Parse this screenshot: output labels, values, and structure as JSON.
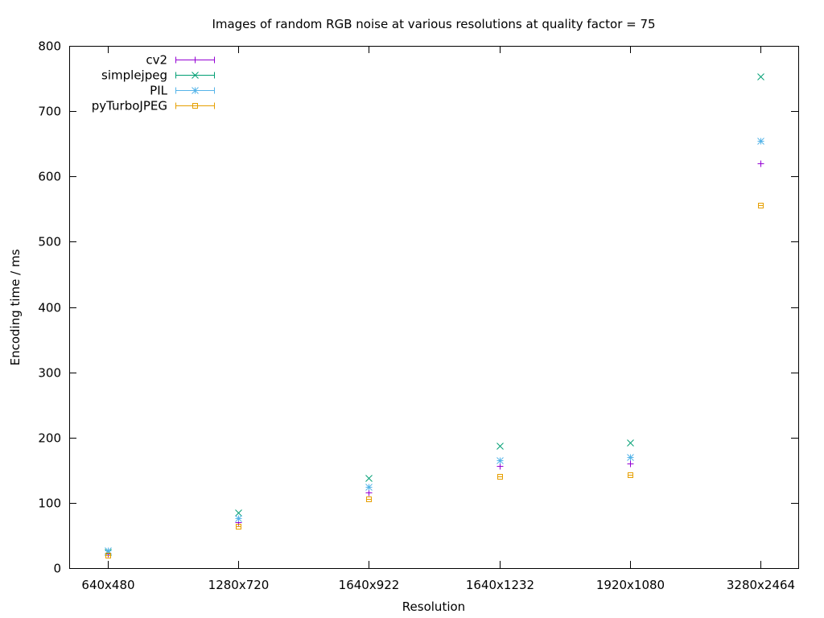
{
  "chart_data": {
    "type": "scatter",
    "title": "Images of random RGB noise at various resolutions at quality factor = 75",
    "xlabel": "Resolution",
    "ylabel": "Encoding time / ms",
    "categories": [
      "640x480",
      "1280x720",
      "1640x922",
      "1640x1232",
      "1920x1080",
      "3280x2464"
    ],
    "ylim": [
      0,
      800
    ],
    "yticks": [
      0,
      100,
      200,
      300,
      400,
      500,
      600,
      700,
      800
    ],
    "grid": false,
    "legend_position": "top-left",
    "series": [
      {
        "name": "cv2",
        "color": "#9400d3",
        "marker": "plus",
        "values": [
          22,
          70,
          116,
          156,
          160,
          620
        ]
      },
      {
        "name": "simplejpeg",
        "color": "#009e73",
        "marker": "cross",
        "values": [
          25,
          85,
          138,
          187,
          192,
          753
        ]
      },
      {
        "name": "PIL",
        "color": "#56b4e9",
        "marker": "star",
        "values": [
          27,
          77,
          125,
          165,
          170,
          655
        ]
      },
      {
        "name": "pyTurboJPEG",
        "color": "#e69f00",
        "marker": "square",
        "values": [
          20,
          64,
          106,
          140,
          143,
          556
        ]
      }
    ]
  }
}
